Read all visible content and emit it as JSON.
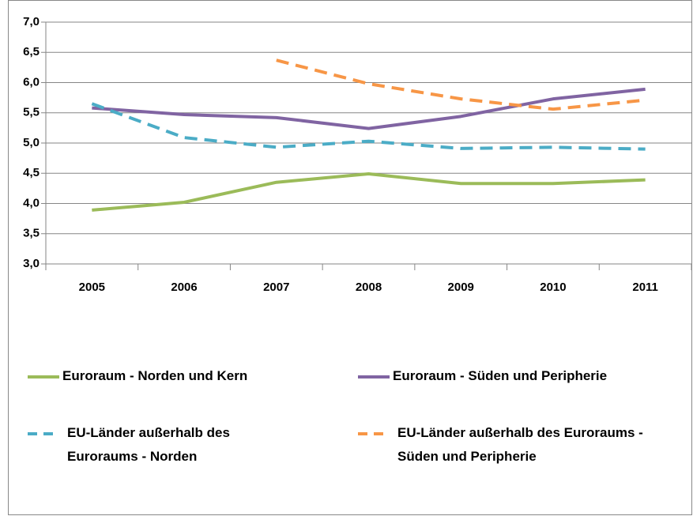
{
  "chart_data": {
    "type": "line",
    "categories": [
      "2005",
      "2006",
      "2007",
      "2008",
      "2009",
      "2010",
      "2011"
    ],
    "ylim": [
      3,
      7
    ],
    "yticks": [
      {
        "value": 3,
        "label": "3,0"
      },
      {
        "value": 3.5,
        "label": "3,5"
      },
      {
        "value": 4,
        "label": "4,0"
      },
      {
        "value": 4.5,
        "label": "4,5"
      },
      {
        "value": 5,
        "label": "5,0"
      },
      {
        "value": 5.5,
        "label": "5,5"
      },
      {
        "value": 6,
        "label": "6,0"
      },
      {
        "value": 6.5,
        "label": "6,5"
      },
      {
        "value": 7,
        "label": "7,0"
      }
    ],
    "grid": true,
    "series": [
      {
        "name": "Euroraum - Norden und Kern",
        "color": "#9bbb59",
        "dashed": false,
        "values": [
          3.89,
          4.02,
          4.35,
          4.49,
          4.33,
          4.33,
          4.39
        ]
      },
      {
        "name": "Euroraum - Süden und Peripherie",
        "color": "#8064a2",
        "dashed": false,
        "values": [
          5.58,
          5.47,
          5.42,
          5.24,
          5.44,
          5.73,
          5.89
        ]
      },
      {
        "name": "EU-Länder außerhalb des Euroraums - Norden",
        "color": "#4bacc6",
        "dashed": true,
        "values": [
          5.65,
          5.09,
          4.93,
          5.03,
          4.91,
          4.93,
          4.9
        ]
      },
      {
        "name": "EU-Länder außerhalb des Euroraums - Süden und Peripherie",
        "color": "#f79646",
        "dashed": true,
        "values": [
          null,
          null,
          6.37,
          5.98,
          5.73,
          5.56,
          5.71
        ]
      }
    ]
  }
}
